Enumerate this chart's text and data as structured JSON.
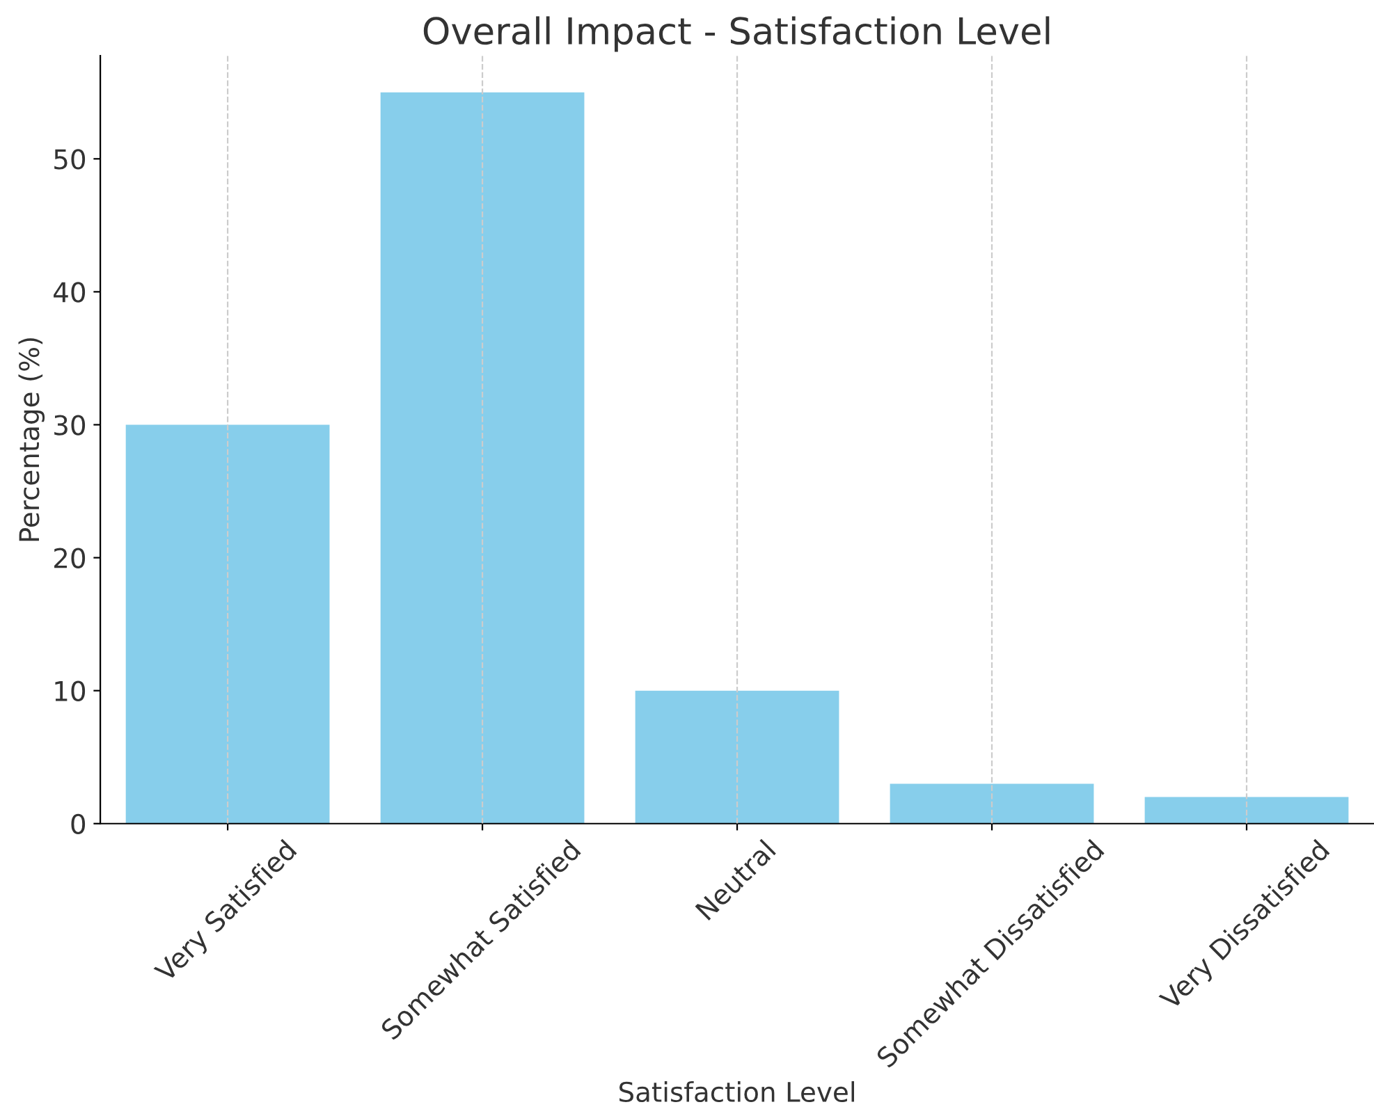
{
  "chart_data": {
    "type": "bar",
    "title": "Overall Impact - Satisfaction Level",
    "xlabel": "Satisfaction Level",
    "ylabel": "Percentage (%)",
    "categories": [
      "Very Satisfied",
      "Somewhat Satisfied",
      "Neutral",
      "Somewhat Dissatisfied",
      "Very Dissatisfied"
    ],
    "values": [
      30,
      55,
      10,
      3,
      2
    ],
    "color": "#87ceeb",
    "ylim": [
      0,
      57.75
    ],
    "yticks": [
      0,
      10,
      20,
      30,
      40,
      50
    ],
    "grid": "x"
  }
}
